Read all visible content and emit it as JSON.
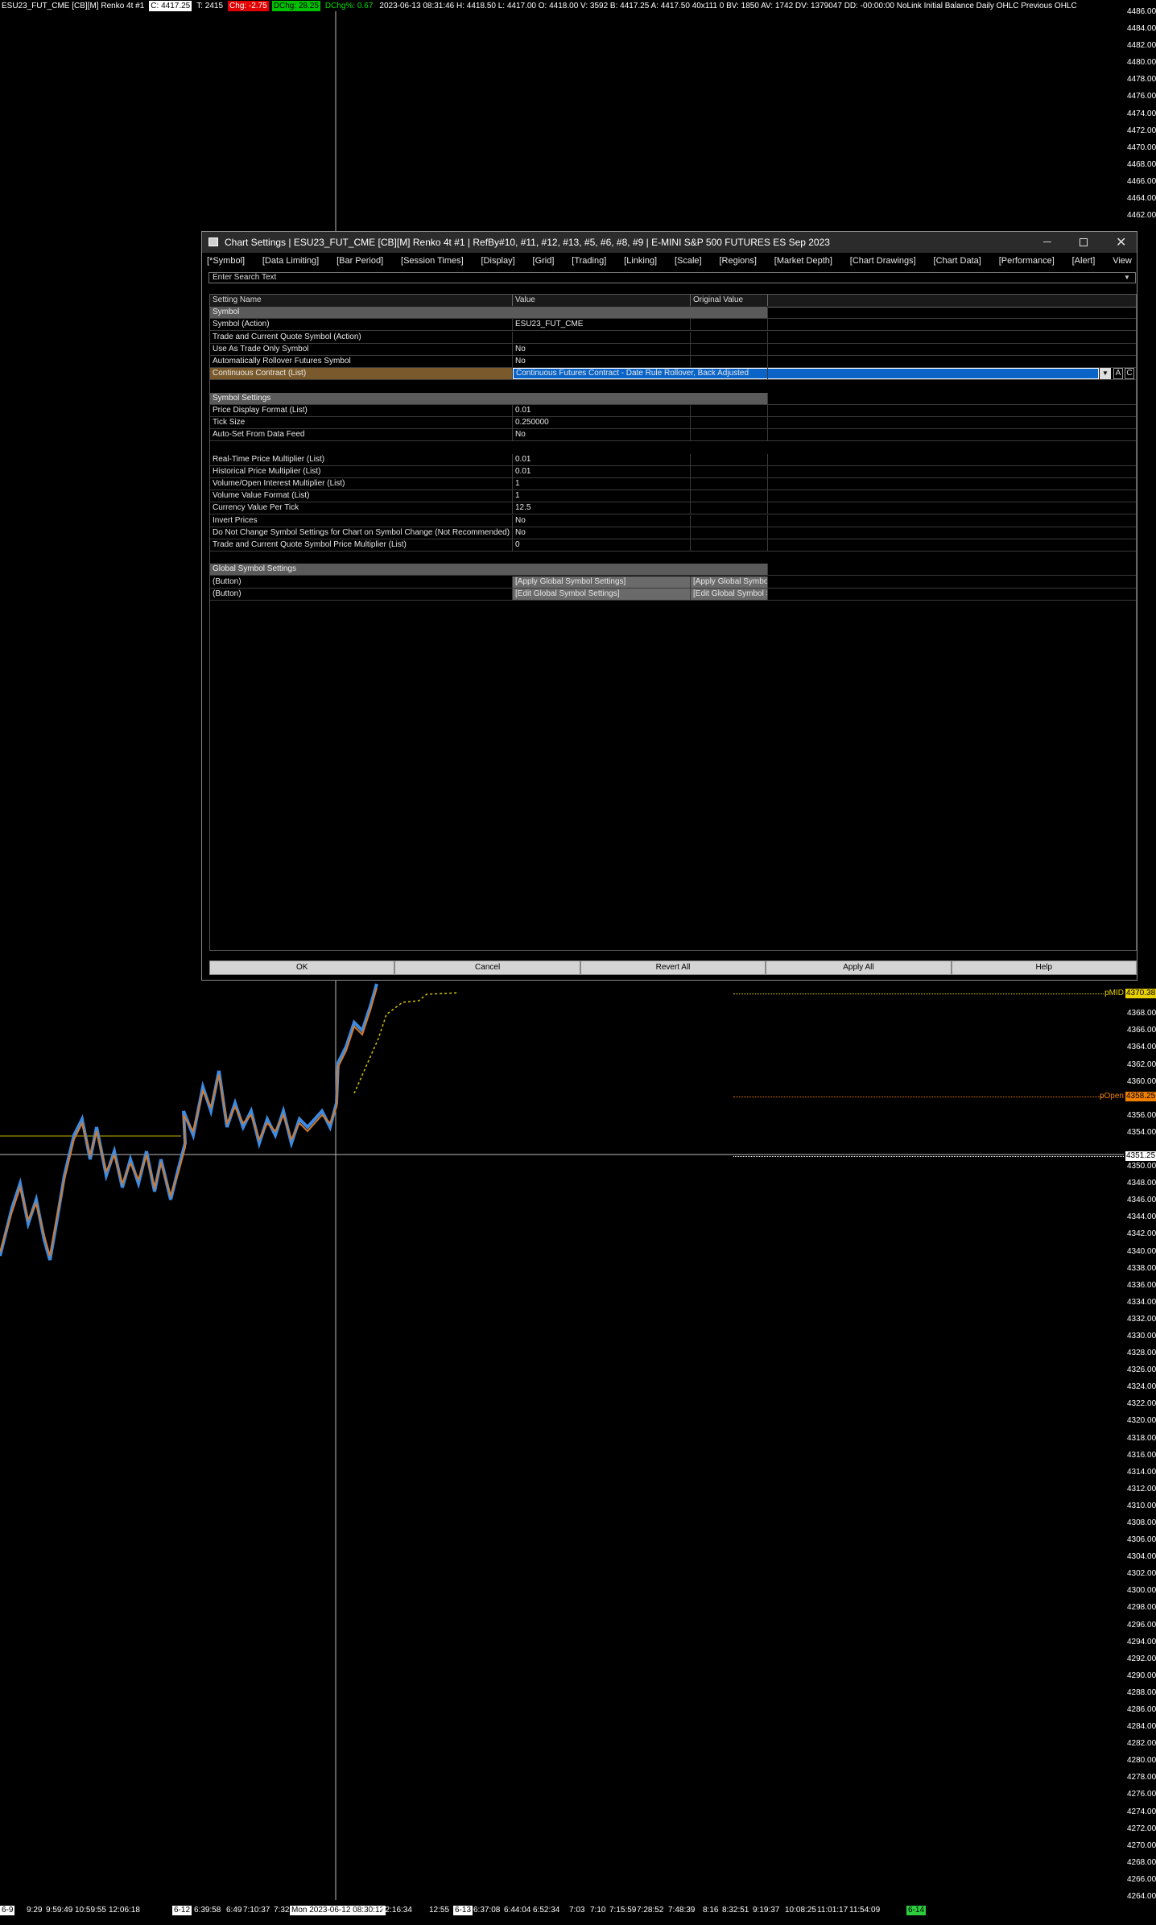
{
  "status_bar": {
    "segments": [
      {
        "text": "ESU23_FUT_CME [CB][M]  Renko 4t  #1",
        "color": "#ffffff"
      },
      {
        "text": "C: 4417.25",
        "color": "#000000",
        "bg": "#ffffff"
      },
      {
        "text": "T: 2415",
        "color": "#ffffff"
      },
      {
        "text": "Chg: -2.75",
        "color": "#ffffff",
        "bg": "#e00000"
      },
      {
        "text": "DChg: 28.25",
        "color": "#000000",
        "bg": "#00c000"
      },
      {
        "text": "DChg%: 0.67",
        "color": "#00e000"
      },
      {
        "text": "2023-06-13 08:31:46 H: 4418.50 L: 4417.00 O: 4418.00 V: 3592 B: 4417.25 A: 4417.50 40x111 0 BV: 1850 AV: 1742 DV: 1379047 DD: -00:00:00 NoLink Initial Balance  Daily OHLC  Previous OHLC",
        "color": "#ffffff"
      }
    ]
  },
  "price_axis": {
    "labels": [
      "4486.00",
      "4484.00",
      "4482.00",
      "4480.00",
      "4478.00",
      "4476.00",
      "4474.00",
      "4472.00",
      "4470.00",
      "4468.00",
      "4466.00",
      "4464.00",
      "4462.00",
      "4368.00",
      "4366.00",
      "4364.00",
      "4362.00",
      "4360.00",
      "4356.00",
      "4354.00",
      "4350.00",
      "4348.00",
      "4346.00",
      "4344.00",
      "4342.00",
      "4340.00",
      "4338.00",
      "4336.00",
      "4334.00",
      "4332.00",
      "4330.00",
      "4328.00",
      "4326.00",
      "4324.00",
      "4322.00",
      "4320.00",
      "4318.00",
      "4316.00",
      "4314.00",
      "4312.00",
      "4310.00",
      "4308.00",
      "4306.00",
      "4304.00",
      "4302.00",
      "4300.00",
      "4298.00",
      "4296.00",
      "4294.00",
      "4292.00",
      "4290.00",
      "4288.00",
      "4286.00",
      "4284.00",
      "4282.00",
      "4280.00",
      "4278.00",
      "4276.00",
      "4274.00",
      "4272.00",
      "4270.00",
      "4268.00",
      "4266.00",
      "4264.00"
    ]
  },
  "price_markers": [
    {
      "label": "pMID",
      "value": "4370.38",
      "color": "#e8d000"
    },
    {
      "label": "pOpen",
      "value": "4358.25",
      "color": "#f08000"
    },
    {
      "value": "4351.25",
      "color": "#ffffff"
    }
  ],
  "time_axis": {
    "labels": [
      "6-9",
      "9:29",
      "9:59:49",
      "10:59:55",
      "12:06:18",
      "6-12",
      "6:39:58",
      "6:49",
      "7:10:37",
      "7:32",
      "Mon 2023-06-12 08:30:12",
      "12:16:34",
      "12:55",
      "6-13",
      "6:37:08",
      "6:44:04",
      "6:52:34",
      "7:03",
      "7:10",
      "7:15:59",
      "7:28:52",
      "7:48:39",
      "8:16",
      "8:32:51",
      "9:19:37",
      "10:08:25",
      "11:01:17",
      "11:54:09",
      "6-14"
    ]
  },
  "dialog": {
    "title": "Chart Settings | ESU23_FUT_CME [CB][M]  Renko 4t  #1 | RefBy#10, #11, #12, #13, #5, #6, #8, #9 | E-MINI S&P 500 FUTURES ES Sep 2023",
    "menu": [
      "[*Symbol]",
      "[Data Limiting]",
      "[Bar Period]",
      "[Session Times]",
      "[Display]",
      "[Grid]",
      "[Trading]",
      "[Linking]",
      "[Scale]",
      "[Regions]",
      "[Market Depth]",
      "[Chart Drawings]",
      "[Chart Data]",
      "[Performance]",
      "[Alert]",
      "View"
    ],
    "search_placeholder": "Enter Search Text",
    "columns": [
      "Setting Name",
      "Value",
      "Original Value"
    ],
    "sections": [
      {
        "title": "Symbol",
        "groups": [
          [
            [
              "Symbol (Action)",
              "ESU23_FUT_CME"
            ],
            [
              "Trade and Current Quote Symbol (Action)"
            ],
            [
              "Use As Trade Only Symbol",
              "No"
            ],
            [
              "Automatically Rollover Futures Symbol",
              "No"
            ],
            [
              "Continuous Contract (List)",
              "Continuous Futures Contract - Date Rule Rollover, Back Adjusted"
            ]
          ]
        ]
      },
      {
        "title": "Symbol Settings",
        "groups": [
          [
            [
              "Price Display Format (List)",
              "0.01"
            ],
            [
              "Tick Size",
              "0.250000"
            ],
            [
              "Auto-Set From Data Feed",
              "No"
            ]
          ],
          [
            [
              "Real-Time Price Multiplier (List)",
              "0.01"
            ],
            [
              "Historical Price Multiplier (List)",
              "0.01"
            ],
            [
              "Volume/Open Interest Multiplier (List)",
              "1"
            ],
            [
              "Volume Value Format (List)",
              "1"
            ],
            [
              "Currency Value Per Tick",
              "12.5"
            ],
            [
              "Invert Prices",
              "No"
            ],
            [
              "Do Not Change Symbol Settings for Chart on Symbol Change (Not Recommended)",
              "No"
            ],
            [
              "Trade and Current Quote Symbol Price Multiplier (List)",
              "0"
            ]
          ]
        ]
      },
      {
        "title": "Global Symbol Settings",
        "groups": [
          [
            [
              "(Button)",
              "[Apply Global Symbol Settings]",
              "[Apply Global Symbol"
            ],
            [
              "(Button)",
              "[Edit Global Symbol Settings]",
              "[Edit Global Symbol Se"
            ]
          ]
        ]
      }
    ],
    "dropdown_buttons": [
      "A",
      "C"
    ],
    "buttons": [
      "OK",
      "Cancel",
      "Revert All",
      "Apply All",
      "Help"
    ]
  }
}
